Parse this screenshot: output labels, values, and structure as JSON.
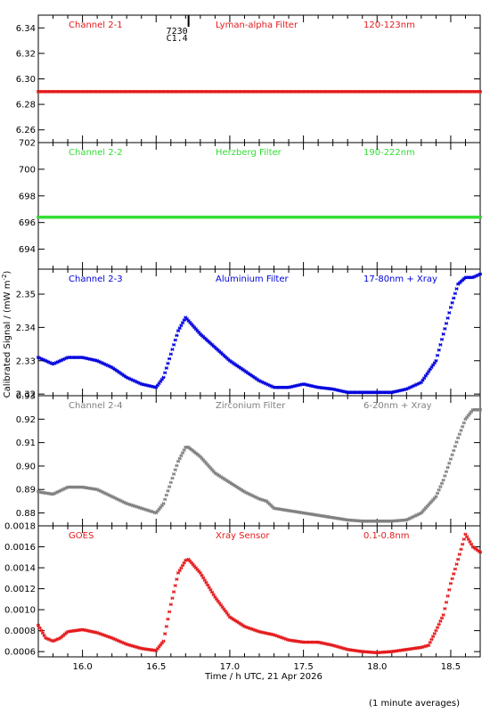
{
  "figure": {
    "xlabel": "Time / h UTC, 21 Apr 2026",
    "ylabel": "Calibrated Signal / (mW m",
    "ylabel_sup": "-2",
    "ylabel_close": ")",
    "footnote": "(1 minute averages)"
  },
  "event": {
    "label_1": "7230",
    "label_2": "C1.4",
    "time": 16.72
  },
  "chart_data": [
    {
      "type": "scatter",
      "channel": "Channel 2-1",
      "filter": "Lyman-alpha Filter",
      "band": "120-123nm",
      "color": "#e41a1c",
      "xlim": [
        15.7,
        18.7
      ],
      "ylim": [
        6.25,
        6.35
      ],
      "y_ticks": [
        "6.26",
        "6.28",
        "6.30",
        "6.32",
        "6.34"
      ],
      "y_tick_values": [
        6.26,
        6.28,
        6.3,
        6.32,
        6.34
      ],
      "x": [
        15.7,
        18.7
      ],
      "y": [
        6.29,
        6.29
      ],
      "note": "constant"
    },
    {
      "type": "scatter",
      "channel": "Channel 2-2",
      "filter": "Herzberg Filter",
      "band": "190-222nm",
      "color": "#33dd33",
      "xlim": [
        15.7,
        18.7
      ],
      "ylim": [
        692.5,
        702.0
      ],
      "y_ticks": [
        "694",
        "696",
        "698",
        "700",
        "702"
      ],
      "y_tick_values": [
        694,
        696,
        698,
        700,
        702
      ],
      "x": [
        15.7,
        18.7
      ],
      "y": [
        696.4,
        696.4
      ],
      "note": "constant"
    },
    {
      "type": "scatter",
      "channel": "Channel 2-3",
      "filter": "Aluminium Filter",
      "band": "17-80nm + Xray",
      "color": "#0000dd",
      "xlim": [
        15.7,
        18.7
      ],
      "ylim": [
        2.3195,
        2.3575
      ],
      "y_ticks": [
        "2.32",
        "2.33",
        "2.34",
        "2.35"
      ],
      "y_tick_values": [
        2.32,
        2.33,
        2.34,
        2.35
      ],
      "x": [
        15.7,
        15.8,
        15.9,
        16.0,
        16.1,
        16.2,
        16.3,
        16.4,
        16.5,
        16.55,
        16.6,
        16.65,
        16.7,
        16.72,
        16.8,
        16.9,
        17.0,
        17.1,
        17.2,
        17.25,
        17.3,
        17.4,
        17.5,
        17.6,
        17.7,
        17.8,
        17.9,
        18.0,
        18.1,
        18.2,
        18.3,
        18.4,
        18.45,
        18.5,
        18.55,
        18.6,
        18.65,
        18.7
      ],
      "y": [
        2.331,
        2.329,
        2.331,
        2.331,
        2.33,
        2.328,
        2.325,
        2.323,
        2.322,
        2.325,
        2.332,
        2.339,
        2.343,
        2.342,
        2.338,
        2.334,
        2.33,
        2.327,
        2.324,
        2.323,
        2.322,
        2.322,
        2.323,
        2.322,
        2.3215,
        2.3205,
        2.3205,
        2.3205,
        2.3205,
        2.3215,
        2.3235,
        2.33,
        2.338,
        2.346,
        2.353,
        2.355,
        2.355,
        2.356
      ]
    },
    {
      "type": "scatter",
      "channel": "Channel 2-4",
      "filter": "Zirconium Filter",
      "band": "6-20nm + Xray",
      "color": "#808080",
      "xlim": [
        15.7,
        18.7
      ],
      "ylim": [
        0.8745,
        0.93
      ],
      "y_ticks": [
        "0.88",
        "0.89",
        "0.90",
        "0.91",
        "0.92",
        "0.93"
      ],
      "y_tick_values": [
        0.88,
        0.89,
        0.9,
        0.91,
        0.92,
        0.93
      ],
      "x": [
        15.7,
        15.8,
        15.9,
        16.0,
        16.1,
        16.2,
        16.3,
        16.4,
        16.5,
        16.55,
        16.6,
        16.65,
        16.7,
        16.72,
        16.8,
        16.9,
        17.0,
        17.1,
        17.2,
        17.25,
        17.3,
        17.4,
        17.5,
        17.6,
        17.7,
        17.8,
        17.9,
        18.0,
        18.1,
        18.2,
        18.3,
        18.4,
        18.45,
        18.5,
        18.55,
        18.6,
        18.65,
        18.7
      ],
      "y": [
        0.889,
        0.888,
        0.891,
        0.891,
        0.89,
        0.887,
        0.884,
        0.882,
        0.88,
        0.884,
        0.893,
        0.902,
        0.908,
        0.908,
        0.904,
        0.897,
        0.893,
        0.889,
        0.886,
        0.885,
        0.882,
        0.881,
        0.88,
        0.879,
        0.878,
        0.877,
        0.8765,
        0.8765,
        0.8765,
        0.877,
        0.88,
        0.887,
        0.894,
        0.903,
        0.912,
        0.92,
        0.924,
        0.924
      ]
    },
    {
      "type": "scatter",
      "channel": "GOES",
      "filter": "Xray Sensor",
      "band": "0.1-0.8nm",
      "color": "#e41a1c",
      "xlim": [
        15.7,
        18.7
      ],
      "ylim": [
        0.00055,
        0.0018
      ],
      "y_ticks": [
        "0.0006",
        "0.0008",
        "0.0010",
        "0.0012",
        "0.0014",
        "0.0016",
        "0.0018"
      ],
      "y_tick_values": [
        0.0006,
        0.0008,
        0.001,
        0.0012,
        0.0014,
        0.0016,
        0.0018
      ],
      "x": [
        15.7,
        15.75,
        15.8,
        15.85,
        15.9,
        16.0,
        16.1,
        16.2,
        16.3,
        16.4,
        16.5,
        16.55,
        16.6,
        16.65,
        16.7,
        16.72,
        16.8,
        16.9,
        17.0,
        17.1,
        17.2,
        17.3,
        17.4,
        17.5,
        17.6,
        17.7,
        17.8,
        17.9,
        18.0,
        18.1,
        18.2,
        18.3,
        18.35,
        18.4,
        18.45,
        18.5,
        18.55,
        18.6,
        18.65,
        18.7
      ],
      "y": [
        0.00085,
        0.00073,
        0.0007,
        0.00073,
        0.00079,
        0.00081,
        0.00078,
        0.00073,
        0.00067,
        0.00063,
        0.00061,
        0.0007,
        0.00105,
        0.00135,
        0.00147,
        0.00148,
        0.00135,
        0.00112,
        0.00093,
        0.00084,
        0.00079,
        0.00076,
        0.00071,
        0.00069,
        0.00069,
        0.00066,
        0.00062,
        0.0006,
        0.00059,
        0.0006,
        0.00062,
        0.00064,
        0.00066,
        0.0008,
        0.00095,
        0.00125,
        0.00148,
        0.00172,
        0.0016,
        0.00155
      ]
    }
  ],
  "x_axis": {
    "xlim": [
      15.7,
      18.7
    ],
    "ticks": [
      "16.0",
      "16.5",
      "17.0",
      "17.5",
      "18.0",
      "18.5"
    ],
    "tick_values": [
      16.0,
      16.5,
      17.0,
      17.5,
      18.0,
      18.5
    ],
    "minor_step": 0.1
  }
}
